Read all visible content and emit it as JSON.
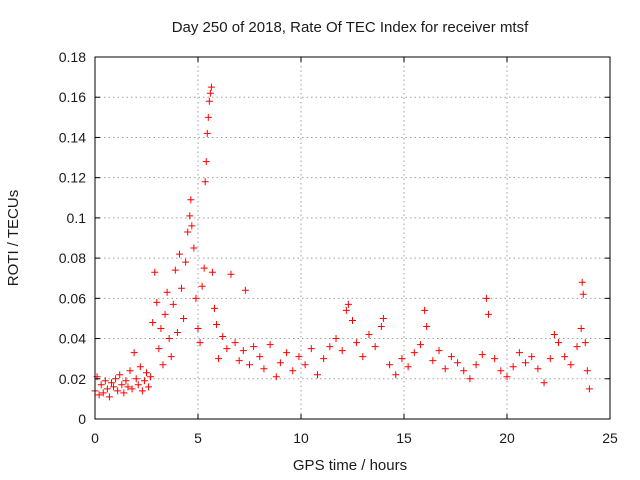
{
  "chart_data": {
    "type": "scatter",
    "title": "Day 250 of 2018, Rate Of TEC Index for receiver mtsf",
    "xlabel": "GPS time / hours",
    "ylabel": "ROTI / TECUs",
    "xlim": [
      0,
      25
    ],
    "ylim": [
      0,
      0.18
    ],
    "xticks": [
      0,
      5,
      10,
      15,
      20,
      25
    ],
    "yticks": [
      0,
      0.02,
      0.04,
      0.06,
      0.08,
      0.1,
      0.12,
      0.14,
      0.16,
      0.18
    ],
    "xtick_labels": [
      "0",
      "5",
      "10",
      "15",
      "20",
      "25"
    ],
    "ytick_labels": [
      "0",
      "0.02",
      "0.04",
      "0.06",
      "0.08",
      "0.1",
      "0.12",
      "0.14",
      "0.16",
      "0.18"
    ],
    "grid": true,
    "marker": "+",
    "color": "#ff0000",
    "series": [
      {
        "points": [
          [
            0.0,
            0.014
          ],
          [
            0.1,
            0.021
          ],
          [
            0.2,
            0.012
          ],
          [
            0.3,
            0.017
          ],
          [
            0.4,
            0.013
          ],
          [
            0.5,
            0.019
          ],
          [
            0.6,
            0.015
          ],
          [
            0.7,
            0.011
          ],
          [
            0.8,
            0.018
          ],
          [
            0.9,
            0.016
          ],
          [
            1.0,
            0.02
          ],
          [
            1.1,
            0.014
          ],
          [
            1.2,
            0.022
          ],
          [
            1.3,
            0.017
          ],
          [
            1.4,
            0.013
          ],
          [
            1.5,
            0.019
          ],
          [
            1.6,
            0.016
          ],
          [
            1.7,
            0.024
          ],
          [
            1.8,
            0.015
          ],
          [
            1.9,
            0.033
          ],
          [
            2.0,
            0.02
          ],
          [
            2.1,
            0.017
          ],
          [
            2.2,
            0.026
          ],
          [
            2.3,
            0.014
          ],
          [
            2.4,
            0.019
          ],
          [
            2.5,
            0.023
          ],
          [
            2.6,
            0.016
          ],
          [
            2.7,
            0.021
          ],
          [
            2.8,
            0.048
          ],
          [
            2.9,
            0.073
          ],
          [
            3.0,
            0.058
          ],
          [
            3.1,
            0.035
          ],
          [
            3.2,
            0.045
          ],
          [
            3.3,
            0.027
          ],
          [
            3.4,
            0.052
          ],
          [
            3.5,
            0.063
          ],
          [
            3.6,
            0.04
          ],
          [
            3.7,
            0.031
          ],
          [
            3.8,
            0.057
          ],
          [
            3.9,
            0.074
          ],
          [
            4.0,
            0.043
          ],
          [
            4.1,
            0.082
          ],
          [
            4.2,
            0.065
          ],
          [
            4.3,
            0.05
          ],
          [
            4.4,
            0.078
          ],
          [
            4.5,
            0.093
          ],
          [
            4.6,
            0.101
          ],
          [
            4.65,
            0.109
          ],
          [
            4.7,
            0.096
          ],
          [
            4.8,
            0.085
          ],
          [
            4.9,
            0.06
          ],
          [
            5.0,
            0.045
          ],
          [
            5.1,
            0.038
          ],
          [
            5.2,
            0.066
          ],
          [
            5.3,
            0.075
          ],
          [
            5.35,
            0.118
          ],
          [
            5.4,
            0.128
          ],
          [
            5.45,
            0.142
          ],
          [
            5.5,
            0.15
          ],
          [
            5.55,
            0.158
          ],
          [
            5.6,
            0.162
          ],
          [
            5.65,
            0.165
          ],
          [
            5.7,
            0.073
          ],
          [
            5.8,
            0.055
          ],
          [
            5.9,
            0.047
          ],
          [
            6.0,
            0.03
          ],
          [
            6.2,
            0.041
          ],
          [
            6.4,
            0.035
          ],
          [
            6.6,
            0.072
          ],
          [
            6.8,
            0.038
          ],
          [
            7.0,
            0.029
          ],
          [
            7.2,
            0.034
          ],
          [
            7.3,
            0.064
          ],
          [
            7.5,
            0.027
          ],
          [
            7.7,
            0.036
          ],
          [
            8.0,
            0.031
          ],
          [
            8.2,
            0.025
          ],
          [
            8.5,
            0.037
          ],
          [
            8.8,
            0.021
          ],
          [
            9.0,
            0.028
          ],
          [
            9.3,
            0.033
          ],
          [
            9.6,
            0.024
          ],
          [
            9.9,
            0.031
          ],
          [
            10.2,
            0.027
          ],
          [
            10.5,
            0.035
          ],
          [
            10.8,
            0.022
          ],
          [
            11.1,
            0.03
          ],
          [
            11.4,
            0.036
          ],
          [
            11.7,
            0.04
          ],
          [
            12.0,
            0.034
          ],
          [
            12.2,
            0.054
          ],
          [
            12.3,
            0.057
          ],
          [
            12.5,
            0.049
          ],
          [
            12.7,
            0.038
          ],
          [
            13.0,
            0.031
          ],
          [
            13.3,
            0.042
          ],
          [
            13.6,
            0.036
          ],
          [
            13.9,
            0.046
          ],
          [
            14.0,
            0.05
          ],
          [
            14.3,
            0.027
          ],
          [
            14.6,
            0.022
          ],
          [
            14.9,
            0.03
          ],
          [
            15.2,
            0.026
          ],
          [
            15.5,
            0.033
          ],
          [
            15.8,
            0.037
          ],
          [
            16.0,
            0.054
          ],
          [
            16.1,
            0.046
          ],
          [
            16.4,
            0.029
          ],
          [
            16.7,
            0.034
          ],
          [
            17.0,
            0.025
          ],
          [
            17.3,
            0.031
          ],
          [
            17.6,
            0.028
          ],
          [
            17.9,
            0.024
          ],
          [
            18.2,
            0.02
          ],
          [
            18.5,
            0.027
          ],
          [
            18.8,
            0.032
          ],
          [
            19.0,
            0.06
          ],
          [
            19.1,
            0.052
          ],
          [
            19.4,
            0.03
          ],
          [
            19.7,
            0.024
          ],
          [
            20.0,
            0.021
          ],
          [
            20.3,
            0.026
          ],
          [
            20.6,
            0.033
          ],
          [
            20.9,
            0.028
          ],
          [
            21.2,
            0.031
          ],
          [
            21.5,
            0.025
          ],
          [
            21.8,
            0.018
          ],
          [
            22.1,
            0.03
          ],
          [
            22.3,
            0.042
          ],
          [
            22.5,
            0.038
          ],
          [
            22.8,
            0.031
          ],
          [
            23.1,
            0.027
          ],
          [
            23.4,
            0.036
          ],
          [
            23.6,
            0.045
          ],
          [
            23.65,
            0.068
          ],
          [
            23.7,
            0.062
          ],
          [
            23.8,
            0.038
          ],
          [
            23.9,
            0.024
          ],
          [
            24.0,
            0.015
          ]
        ]
      }
    ]
  }
}
